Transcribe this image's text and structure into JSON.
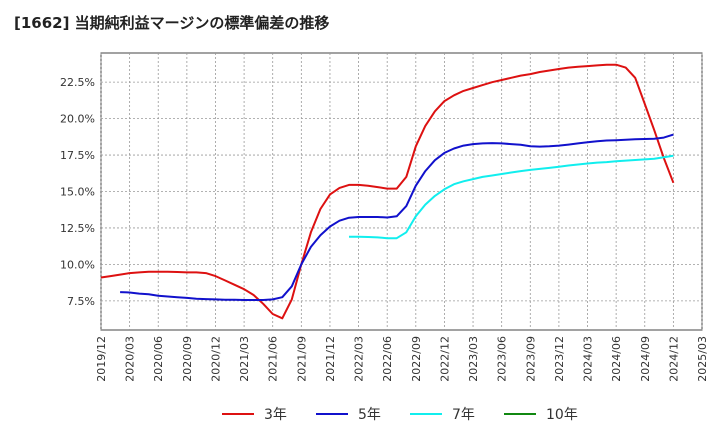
{
  "chart_data": {
    "type": "line",
    "title": "[1662]  当期純利益マージンの標準偏差の推移",
    "xlabel": "",
    "ylabel": "",
    "ylim": [
      5.5,
      24.5
    ],
    "yticks": [
      7.5,
      10.0,
      12.5,
      15.0,
      17.5,
      20.0,
      22.5
    ],
    "ytick_labels": [
      "7.5%",
      "10.0%",
      "12.5%",
      "15.0%",
      "17.5%",
      "20.0%",
      "22.5%"
    ],
    "xticks": [
      "2019/12",
      "2020/03",
      "2020/06",
      "2020/09",
      "2020/12",
      "2021/03",
      "2021/06",
      "2021/09",
      "2021/12",
      "2022/03",
      "2022/06",
      "2022/09",
      "2022/12",
      "2023/03",
      "2023/06",
      "2023/09",
      "2023/12",
      "2024/03",
      "2024/06",
      "2024/09",
      "2024/12",
      "2025/03"
    ],
    "grid": true,
    "legend_position": "bottom",
    "series": [
      {
        "name": "3年",
        "color": "#dd1111",
        "points": [
          [
            "2019/12",
            9.1
          ],
          [
            "2020/01",
            9.2
          ],
          [
            "2020/02",
            9.3
          ],
          [
            "2020/03",
            9.4
          ],
          [
            "2020/04",
            9.45
          ],
          [
            "2020/05",
            9.5
          ],
          [
            "2020/06",
            9.5
          ],
          [
            "2020/07",
            9.5
          ],
          [
            "2020/08",
            9.48
          ],
          [
            "2020/09",
            9.45
          ],
          [
            "2020/10",
            9.45
          ],
          [
            "2020/11",
            9.4
          ],
          [
            "2020/12",
            9.2
          ],
          [
            "2021/01",
            8.9
          ],
          [
            "2021/02",
            8.6
          ],
          [
            "2021/03",
            8.3
          ],
          [
            "2021/04",
            7.9
          ],
          [
            "2021/05",
            7.3
          ],
          [
            "2021/06",
            6.6
          ],
          [
            "2021/07",
            6.3
          ],
          [
            "2021/08",
            7.6
          ],
          [
            "2021/09",
            10.0
          ],
          [
            "2021/10",
            12.2
          ],
          [
            "2021/11",
            13.8
          ],
          [
            "2021/12",
            14.8
          ],
          [
            "2022/01",
            15.25
          ],
          [
            "2022/02",
            15.45
          ],
          [
            "2022/03",
            15.45
          ],
          [
            "2022/04",
            15.4
          ],
          [
            "2022/05",
            15.3
          ],
          [
            "2022/06",
            15.2
          ],
          [
            "2022/07",
            15.2
          ],
          [
            "2022/08",
            16.0
          ],
          [
            "2022/09",
            18.1
          ],
          [
            "2022/10",
            19.5
          ],
          [
            "2022/11",
            20.5
          ],
          [
            "2022/12",
            21.2
          ],
          [
            "2023/01",
            21.6
          ],
          [
            "2023/02",
            21.9
          ],
          [
            "2023/03",
            22.1
          ],
          [
            "2023/04",
            22.3
          ],
          [
            "2023/05",
            22.5
          ],
          [
            "2023/06",
            22.65
          ],
          [
            "2023/07",
            22.8
          ],
          [
            "2023/08",
            22.95
          ],
          [
            "2023/09",
            23.05
          ],
          [
            "2023/10",
            23.2
          ],
          [
            "2023/11",
            23.3
          ],
          [
            "2023/12",
            23.4
          ],
          [
            "2024/01",
            23.5
          ],
          [
            "2024/02",
            23.55
          ],
          [
            "2024/03",
            23.6
          ],
          [
            "2024/04",
            23.65
          ],
          [
            "2024/05",
            23.7
          ],
          [
            "2024/06",
            23.7
          ],
          [
            "2024/07",
            23.5
          ],
          [
            "2024/08",
            22.8
          ],
          [
            "2024/09",
            21.0
          ],
          [
            "2024/10",
            19.2
          ],
          [
            "2024/11",
            17.3
          ],
          [
            "2024/12",
            15.6
          ]
        ]
      },
      {
        "name": "5年",
        "color": "#1111cc",
        "points": [
          [
            "2020/02",
            8.1
          ],
          [
            "2020/03",
            8.07
          ],
          [
            "2020/04",
            8.0
          ],
          [
            "2020/05",
            7.95
          ],
          [
            "2020/06",
            7.85
          ],
          [
            "2020/07",
            7.8
          ],
          [
            "2020/08",
            7.75
          ],
          [
            "2020/09",
            7.7
          ],
          [
            "2020/10",
            7.65
          ],
          [
            "2020/11",
            7.62
          ],
          [
            "2020/12",
            7.6
          ],
          [
            "2021/01",
            7.58
          ],
          [
            "2021/02",
            7.57
          ],
          [
            "2021/03",
            7.56
          ],
          [
            "2021/04",
            7.56
          ],
          [
            "2021/05",
            7.56
          ],
          [
            "2021/06",
            7.6
          ],
          [
            "2021/07",
            7.75
          ],
          [
            "2021/08",
            8.5
          ],
          [
            "2021/09",
            10.0
          ],
          [
            "2021/10",
            11.2
          ],
          [
            "2021/11",
            12.0
          ],
          [
            "2021/12",
            12.6
          ],
          [
            "2022/01",
            13.0
          ],
          [
            "2022/02",
            13.2
          ],
          [
            "2022/03",
            13.25
          ],
          [
            "2022/04",
            13.25
          ],
          [
            "2022/05",
            13.25
          ],
          [
            "2022/06",
            13.22
          ],
          [
            "2022/07",
            13.3
          ],
          [
            "2022/08",
            14.0
          ],
          [
            "2022/09",
            15.4
          ],
          [
            "2022/10",
            16.4
          ],
          [
            "2022/11",
            17.15
          ],
          [
            "2022/12",
            17.65
          ],
          [
            "2023/01",
            17.95
          ],
          [
            "2023/02",
            18.15
          ],
          [
            "2023/03",
            18.25
          ],
          [
            "2023/04",
            18.3
          ],
          [
            "2023/05",
            18.32
          ],
          [
            "2023/06",
            18.3
          ],
          [
            "2023/07",
            18.25
          ],
          [
            "2023/08",
            18.2
          ],
          [
            "2023/09",
            18.1
          ],
          [
            "2023/10",
            18.08
          ],
          [
            "2023/11",
            18.1
          ],
          [
            "2023/12",
            18.15
          ],
          [
            "2024/01",
            18.22
          ],
          [
            "2024/02",
            18.3
          ],
          [
            "2024/03",
            18.38
          ],
          [
            "2024/04",
            18.45
          ],
          [
            "2024/05",
            18.5
          ],
          [
            "2024/06",
            18.52
          ],
          [
            "2024/07",
            18.55
          ],
          [
            "2024/08",
            18.58
          ],
          [
            "2024/09",
            18.6
          ],
          [
            "2024/10",
            18.62
          ],
          [
            "2024/11",
            18.7
          ],
          [
            "2024/12",
            18.9
          ]
        ]
      },
      {
        "name": "7年",
        "color": "#11eeee",
        "points": [
          [
            "2022/02",
            11.9
          ],
          [
            "2022/03",
            11.9
          ],
          [
            "2022/04",
            11.88
          ],
          [
            "2022/05",
            11.85
          ],
          [
            "2022/06",
            11.8
          ],
          [
            "2022/07",
            11.8
          ],
          [
            "2022/08",
            12.2
          ],
          [
            "2022/09",
            13.3
          ],
          [
            "2022/10",
            14.1
          ],
          [
            "2022/11",
            14.7
          ],
          [
            "2022/12",
            15.15
          ],
          [
            "2023/01",
            15.5
          ],
          [
            "2023/02",
            15.7
          ],
          [
            "2023/03",
            15.85
          ],
          [
            "2023/04",
            16.0
          ],
          [
            "2023/05",
            16.1
          ],
          [
            "2023/06",
            16.2
          ],
          [
            "2023/07",
            16.3
          ],
          [
            "2023/08",
            16.4
          ],
          [
            "2023/09",
            16.48
          ],
          [
            "2023/10",
            16.55
          ],
          [
            "2023/11",
            16.62
          ],
          [
            "2023/12",
            16.7
          ],
          [
            "2024/01",
            16.78
          ],
          [
            "2024/02",
            16.85
          ],
          [
            "2024/03",
            16.92
          ],
          [
            "2024/04",
            16.98
          ],
          [
            "2024/05",
            17.02
          ],
          [
            "2024/06",
            17.08
          ],
          [
            "2024/07",
            17.12
          ],
          [
            "2024/08",
            17.16
          ],
          [
            "2024/09",
            17.2
          ],
          [
            "2024/10",
            17.25
          ],
          [
            "2024/11",
            17.35
          ],
          [
            "2024/12",
            17.45
          ]
        ]
      },
      {
        "name": "10年",
        "color": "#118811",
        "points": []
      }
    ]
  }
}
